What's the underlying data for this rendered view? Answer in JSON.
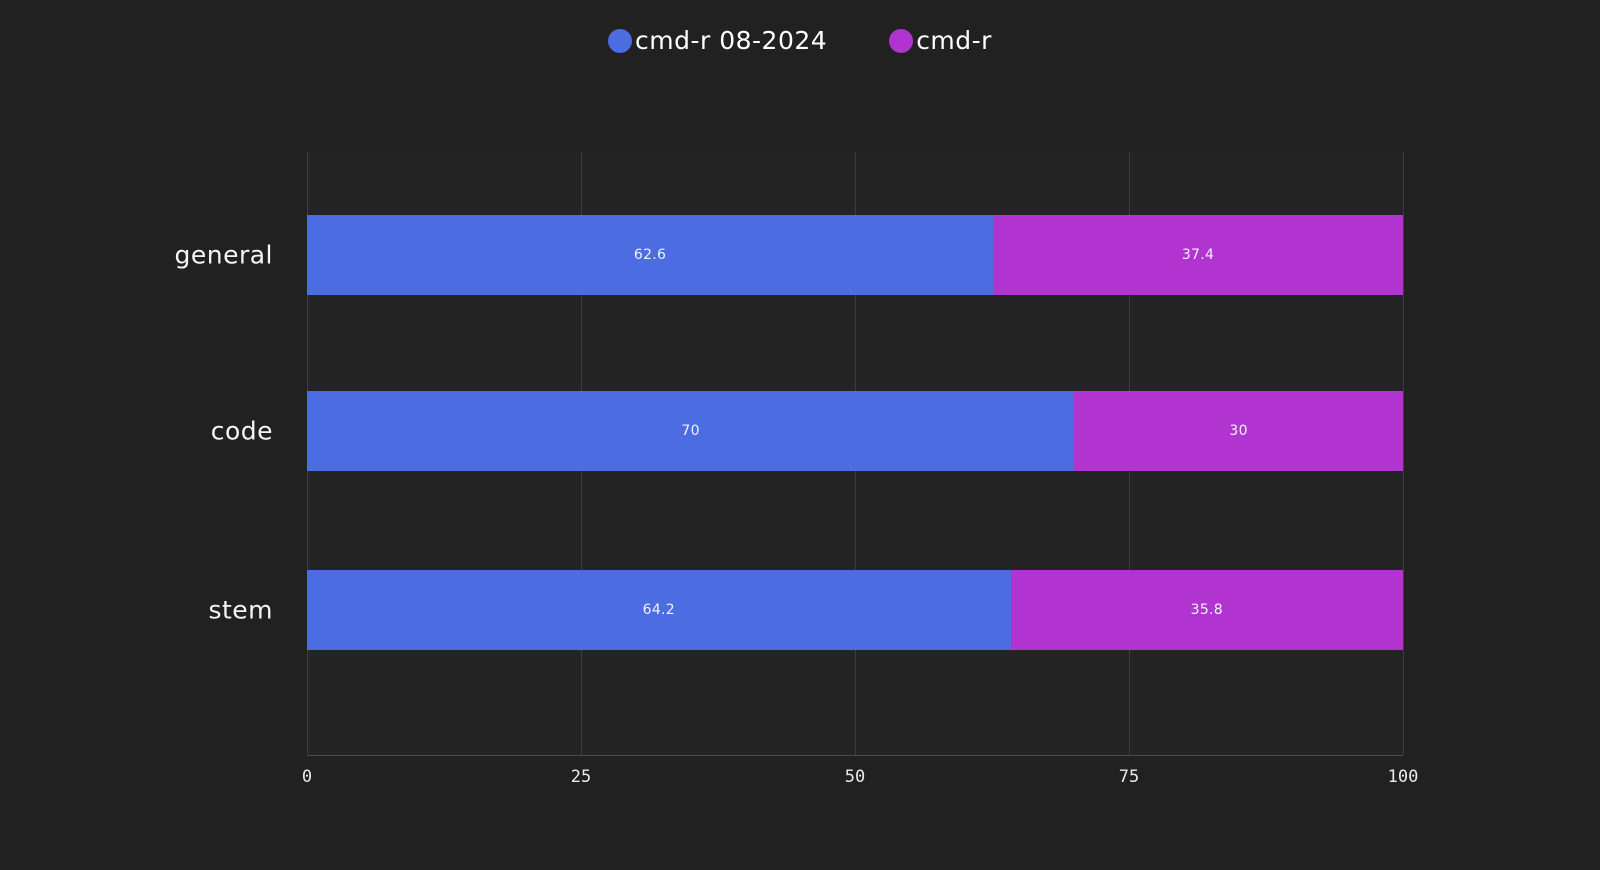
{
  "legend": {
    "items": [
      {
        "label": "cmd-r 08-2024",
        "color": "#4c6ce2"
      },
      {
        "label": "cmd-r",
        "color": "#b134d0"
      }
    ]
  },
  "chart_data": {
    "type": "bar",
    "orientation": "horizontal",
    "stacked": true,
    "title": "",
    "xlabel": "",
    "ylabel": "",
    "categories": [
      "general",
      "code",
      "stem"
    ],
    "series": [
      {
        "name": "cmd-r 08-2024",
        "color": "#4c6ce2",
        "values": [
          62.6,
          70,
          64.2
        ]
      },
      {
        "name": "cmd-r",
        "color": "#b134d0",
        "values": [
          37.4,
          30,
          35.8
        ]
      }
    ],
    "xlim": [
      0,
      100
    ],
    "xticks": [
      0,
      25,
      50,
      75,
      100
    ],
    "grid": "vertical-only",
    "legend_position": "top-center"
  },
  "colors": {
    "background": "#212121",
    "plot_background": "#242424",
    "gridline": "#3d3d3d",
    "axis_line": "#4c4c4c",
    "tick_text": "#eaeaea",
    "label_text": "#f5f5f5",
    "value_text": "#f1f3f8"
  }
}
